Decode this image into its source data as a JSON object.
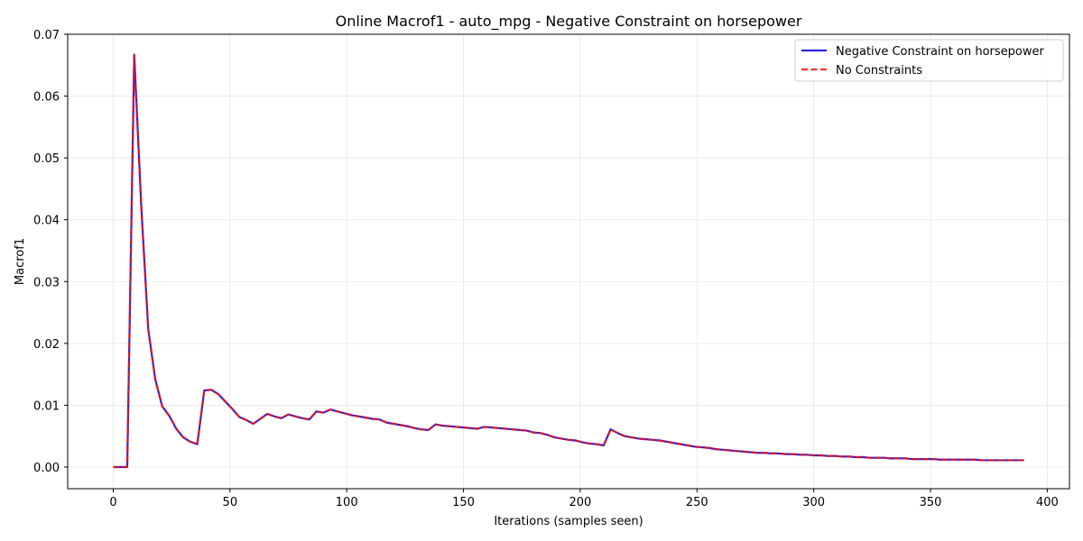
{
  "chart_data": {
    "type": "line",
    "title": "Online Macrof1 - auto_mpg - Negative Constraint on horsepower",
    "xlabel": "Iterations (samples seen)",
    "ylabel": "Macrof1",
    "xlim": [
      -19.5,
      409.5
    ],
    "ylim": [
      -0.0035,
      0.07
    ],
    "xticks": [
      0,
      50,
      100,
      150,
      200,
      250,
      300,
      350,
      400
    ],
    "yticks": [
      0.0,
      0.01,
      0.02,
      0.03,
      0.04,
      0.05,
      0.06,
      0.07
    ],
    "xtick_labels": [
      "0",
      "50",
      "100",
      "150",
      "200",
      "250",
      "300",
      "350",
      "400"
    ],
    "ytick_labels": [
      "0.00",
      "0.01",
      "0.02",
      "0.03",
      "0.04",
      "0.05",
      "0.06",
      "0.07"
    ],
    "grid": true,
    "legend_position": "top-right",
    "x": [
      0,
      3,
      6,
      9,
      12,
      15,
      18,
      21,
      24,
      27,
      30,
      33,
      36,
      39,
      42,
      45,
      48,
      51,
      54,
      57,
      60,
      63,
      66,
      69,
      72,
      75,
      78,
      81,
      84,
      87,
      90,
      93,
      96,
      99,
      102,
      105,
      108,
      111,
      114,
      117,
      120,
      123,
      126,
      129,
      132,
      135,
      138,
      141,
      144,
      147,
      150,
      153,
      156,
      159,
      162,
      165,
      168,
      171,
      174,
      177,
      180,
      183,
      186,
      189,
      192,
      195,
      198,
      201,
      204,
      207,
      210,
      213,
      216,
      219,
      222,
      225,
      228,
      231,
      234,
      237,
      240,
      243,
      246,
      249,
      252,
      255,
      258,
      261,
      264,
      267,
      270,
      273,
      276,
      279,
      282,
      285,
      288,
      291,
      294,
      297,
      300,
      303,
      306,
      309,
      312,
      315,
      318,
      321,
      324,
      327,
      330,
      333,
      336,
      339,
      342,
      345,
      348,
      351,
      354,
      357,
      360,
      363,
      366,
      369,
      372,
      375,
      378,
      381,
      384,
      387,
      390
    ],
    "series": [
      {
        "name": "Negative Constraint on horsepower",
        "color": "#0000dd",
        "style": "solid",
        "values": [
          0.0,
          0.0,
          0.0,
          0.0667,
          0.0423,
          0.0223,
          0.0142,
          0.0098,
          0.0083,
          0.0062,
          0.0048,
          0.0041,
          0.0037,
          0.0124,
          0.0125,
          0.0118,
          0.0106,
          0.0094,
          0.0081,
          0.0076,
          0.007,
          0.0078,
          0.0086,
          0.0082,
          0.0079,
          0.0085,
          0.0082,
          0.0079,
          0.0077,
          0.009,
          0.0088,
          0.0093,
          0.009,
          0.0087,
          0.0084,
          0.0082,
          0.008,
          0.0078,
          0.0077,
          0.0072,
          0.007,
          0.0068,
          0.0066,
          0.0063,
          0.0061,
          0.006,
          0.0069,
          0.0067,
          0.0066,
          0.0065,
          0.0064,
          0.0063,
          0.0062,
          0.0065,
          0.0064,
          0.0063,
          0.0062,
          0.0061,
          0.006,
          0.0059,
          0.0056,
          0.0055,
          0.0052,
          0.0048,
          0.0046,
          0.0044,
          0.0043,
          0.004,
          0.0038,
          0.0037,
          0.0035,
          0.0061,
          0.0055,
          0.005,
          0.0048,
          0.0046,
          0.0045,
          0.0044,
          0.0043,
          0.0041,
          0.0039,
          0.0037,
          0.0035,
          0.0033,
          0.0032,
          0.0031,
          0.0029,
          0.0028,
          0.0027,
          0.0026,
          0.0025,
          0.0024,
          0.0023,
          0.0023,
          0.0022,
          0.0022,
          0.0021,
          0.0021,
          0.002,
          0.002,
          0.0019,
          0.0019,
          0.0018,
          0.0018,
          0.0017,
          0.0017,
          0.0016,
          0.0016,
          0.0015,
          0.0015,
          0.0015,
          0.0014,
          0.0014,
          0.0014,
          0.0013,
          0.0013,
          0.0013,
          0.0013,
          0.0012,
          0.0012,
          0.0012,
          0.0012,
          0.0012,
          0.0012,
          0.0011,
          0.0011,
          0.0011,
          0.0011,
          0.0011,
          0.0011,
          0.0011
        ]
      },
      {
        "name": "No Constraints",
        "color": "#ee1111",
        "style": "dashed",
        "values": [
          0.0,
          0.0,
          0.0,
          0.0667,
          0.0423,
          0.0223,
          0.0142,
          0.0098,
          0.0083,
          0.0062,
          0.0048,
          0.0041,
          0.0037,
          0.0124,
          0.0125,
          0.0118,
          0.0106,
          0.0094,
          0.0081,
          0.0076,
          0.007,
          0.0078,
          0.0086,
          0.0082,
          0.0079,
          0.0085,
          0.0082,
          0.0079,
          0.0077,
          0.009,
          0.0088,
          0.0093,
          0.009,
          0.0087,
          0.0084,
          0.0082,
          0.008,
          0.0078,
          0.0077,
          0.0072,
          0.007,
          0.0068,
          0.0066,
          0.0063,
          0.0061,
          0.006,
          0.0069,
          0.0067,
          0.0066,
          0.0065,
          0.0064,
          0.0063,
          0.0062,
          0.0065,
          0.0064,
          0.0063,
          0.0062,
          0.0061,
          0.006,
          0.0059,
          0.0056,
          0.0055,
          0.0052,
          0.0048,
          0.0046,
          0.0044,
          0.0043,
          0.004,
          0.0038,
          0.0037,
          0.0035,
          0.0061,
          0.0055,
          0.005,
          0.0048,
          0.0046,
          0.0045,
          0.0044,
          0.0043,
          0.0041,
          0.0039,
          0.0037,
          0.0035,
          0.0033,
          0.0032,
          0.0031,
          0.0029,
          0.0028,
          0.0027,
          0.0026,
          0.0025,
          0.0024,
          0.0023,
          0.0023,
          0.0022,
          0.0022,
          0.0021,
          0.0021,
          0.002,
          0.002,
          0.0019,
          0.0019,
          0.0018,
          0.0018,
          0.0017,
          0.0017,
          0.0016,
          0.0016,
          0.0015,
          0.0015,
          0.0015,
          0.0014,
          0.0014,
          0.0014,
          0.0013,
          0.0013,
          0.0013,
          0.0013,
          0.0012,
          0.0012,
          0.0012,
          0.0012,
          0.0012,
          0.0012,
          0.0011,
          0.0011,
          0.0011,
          0.0011,
          0.0011,
          0.0011,
          0.0011
        ]
      }
    ]
  }
}
